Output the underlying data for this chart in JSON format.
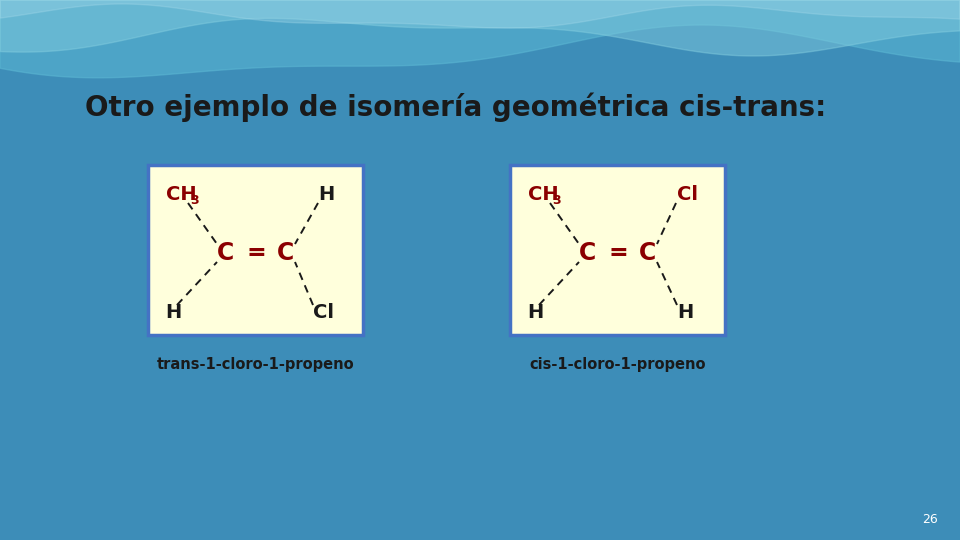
{
  "title": "Otro ejemplo de isomería geométrica cis-trans:",
  "title_color": "#1a1a1a",
  "title_fontsize": 20,
  "bg_color": "#3d8db8",
  "bg_top": "#5aafd4",
  "bg_bottom": "#2c7aaa",
  "wave1_color": "#6ec0d8",
  "wave2_color": "#90d0e8",
  "panel_bg": "#ffffdc",
  "panel_border": "#4472c4",
  "dark_red": "#8b0000",
  "black": "#1a1a1a",
  "white": "#ffffff",
  "label1": "trans-1-cloro-1-propeno",
  "label2": "cis-1-cloro-1-propeno",
  "page_num": "26",
  "trans_panel": [
    148,
    165,
    215,
    170
  ],
  "cis_panel": [
    510,
    165,
    215,
    170
  ]
}
